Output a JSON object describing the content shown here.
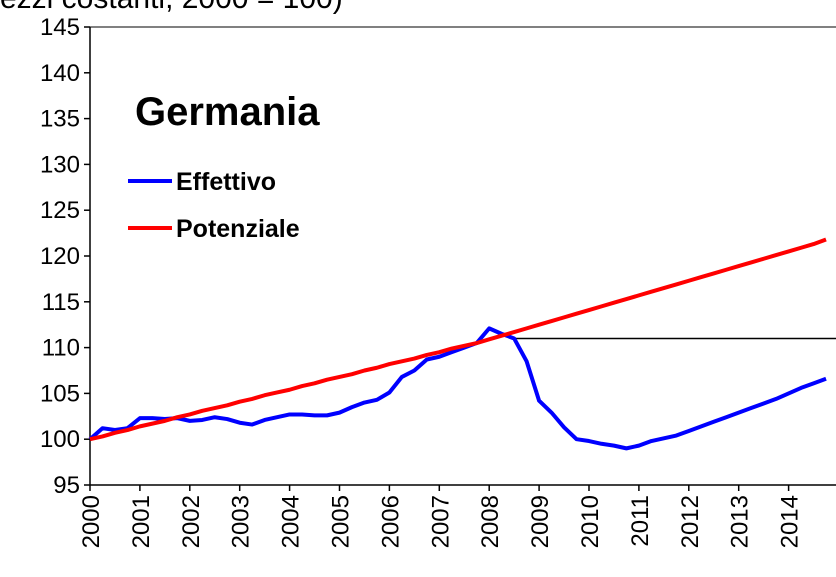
{
  "chart_data": {
    "type": "line",
    "title": "ezzi costanti, 2000 = 100)",
    "annotation": "Germania",
    "x": [
      2000,
      2000.25,
      2000.5,
      2000.75,
      2001,
      2001.25,
      2001.5,
      2001.75,
      2002,
      2002.25,
      2002.5,
      2002.75,
      2003,
      2003.25,
      2003.5,
      2003.75,
      2004,
      2004.25,
      2004.5,
      2004.75,
      2005,
      2005.25,
      2005.5,
      2005.75,
      2006,
      2006.25,
      2006.5,
      2006.75,
      2007,
      2007.25,
      2007.5,
      2007.75,
      2008,
      2008.25,
      2008.5,
      2008.75,
      2009,
      2009.25,
      2009.5,
      2009.75,
      2010,
      2010.25,
      2010.5,
      2010.75,
      2011,
      2011.25,
      2011.5,
      2011.75,
      2012,
      2012.25,
      2012.5,
      2012.75,
      2013,
      2013.25,
      2013.5,
      2013.75,
      2014,
      2014.25,
      2014.5,
      2014.75
    ],
    "series": [
      {
        "name": "Effettivo",
        "color": "#0000ff",
        "values": [
          100,
          101.2,
          101.0,
          101.2,
          102.3,
          102.3,
          102.2,
          102.3,
          102.0,
          102.1,
          102.4,
          102.2,
          101.8,
          101.6,
          102.1,
          102.4,
          102.7,
          102.7,
          102.6,
          102.6,
          102.9,
          103.5,
          104.0,
          104.3,
          105.1,
          106.8,
          107.5,
          108.7,
          109.0,
          109.5,
          110.0,
          110.5,
          112.1,
          111.5,
          111.0,
          108.5,
          104.2,
          102.9,
          101.3,
          100.0,
          99.8,
          99.5,
          99.3,
          99.0,
          99.3,
          99.8,
          100.1,
          100.4,
          100.9,
          101.4,
          101.9,
          102.4,
          102.9,
          103.4,
          103.9,
          104.4,
          105.0,
          105.6,
          106.1,
          106.6
        ]
      },
      {
        "name": "Potenziale",
        "color": "#ff0000",
        "values": [
          100,
          100.3,
          100.7,
          101.0,
          101.4,
          101.7,
          102.0,
          102.4,
          102.7,
          103.1,
          103.4,
          103.7,
          104.1,
          104.4,
          104.8,
          105.1,
          105.4,
          105.8,
          106.1,
          106.5,
          106.8,
          107.1,
          107.5,
          107.8,
          108.2,
          108.5,
          108.8,
          109.2,
          109.5,
          109.9,
          110.2,
          110.5,
          110.9,
          111.3,
          111.7,
          112.1,
          112.5,
          112.9,
          113.3,
          113.7,
          114.1,
          114.5,
          114.9,
          115.3,
          115.7,
          116.1,
          116.5,
          116.9,
          117.3,
          117.7,
          118.1,
          118.5,
          118.9,
          119.3,
          119.7,
          120.1,
          120.5,
          120.9,
          121.3,
          121.8
        ]
      }
    ],
    "reference_line": {
      "y": 111,
      "x_start": 2008.5
    },
    "xlim": [
      2000,
      2014.95
    ],
    "xticks": [
      2000,
      2001,
      2002,
      2003,
      2004,
      2005,
      2006,
      2007,
      2008,
      2009,
      2010,
      2011,
      2012,
      2013,
      2014
    ],
    "ylim": [
      95,
      145
    ],
    "yticks": [
      95,
      100,
      105,
      110,
      115,
      120,
      125,
      130,
      135,
      140,
      145
    ],
    "legend": "upper left"
  }
}
